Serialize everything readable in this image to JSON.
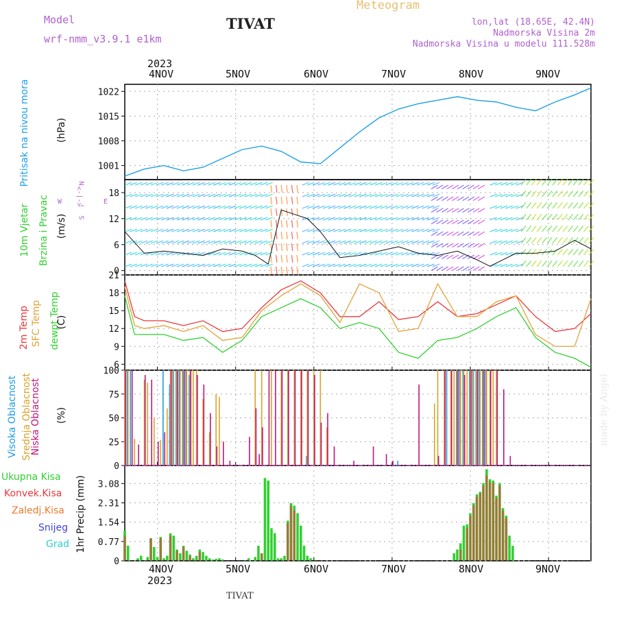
{
  "header": {
    "model_label": "Model",
    "model_name": "wrf-nmm_v3.9.1 e1km",
    "title": "TIVAT",
    "meteogram": "Meteogram",
    "lonlat": "lon,lat (18.65E, 42.4N)",
    "altitude": "Nadmorska Visina 2m",
    "model_altitude": "Nadmorska Visina u modelu 111.528m",
    "footer": "TIVAT",
    "watermark": "made by Angel"
  },
  "time_axis": {
    "year_top": "2023",
    "year_bottom": "2023",
    "days": [
      "4NOV",
      "5NOV",
      "6NOV",
      "7NOV",
      "8NOV",
      "9NOV"
    ]
  },
  "wind_legend": {
    "n": "N",
    "s": "S",
    "e": "E",
    "w": "W",
    "up": "^",
    "arrow": "<-|->"
  },
  "colors": {
    "pressure": "#1ea0e6",
    "temp2m": "#e8383c",
    "sfc": "#e2a33a",
    "dewpt": "#2fd02f",
    "high_cloud": "#1e9be0",
    "mid_cloud": "#d8a22a",
    "low_cloud": "#c0157a",
    "ukupna": "#2fd02f",
    "konvek": "#e8383c",
    "zaledj": "#f07a2a",
    "snijeg": "#4040e0",
    "grad": "#2ccfcf"
  },
  "panels": {
    "pressure": {
      "label1": "Pritisak na nivou mora",
      "unit": "(hPa)",
      "ticks": [
        "1001",
        "1008",
        "1015",
        "1022"
      ]
    },
    "wind": {
      "label1": "10m Vjetar",
      "label2": "Brzina i Pravac",
      "unit": "(m/s)",
      "ticks": [
        "0",
        "6",
        "12",
        "18"
      ]
    },
    "temp": {
      "label1": "2m Temp",
      "label2": "SFC Temp",
      "label3": "dewpt Temp",
      "unit": "(C)",
      "ticks": [
        "6",
        "9",
        "12",
        "15",
        "18",
        "21"
      ]
    },
    "cloud": {
      "label1": "Visoka Oblacnost",
      "label2": "Srednja Oblacnost",
      "label3": "Niska Oblacnost",
      "unit": "(%)",
      "ticks": [
        "0",
        "25",
        "50",
        "75",
        "100"
      ]
    },
    "precip": {
      "unit": "1hr Precip (mm)",
      "ticks": [
        "0",
        "0.77",
        "1.54",
        "2.31",
        "3.08"
      ],
      "legend": [
        "Ukupna Kisa",
        "Konvek.Kisa",
        "Zaledj.Kisa",
        "Snijeg",
        "Grad"
      ]
    }
  },
  "chart_data": [
    {
      "type": "line",
      "title": "",
      "ylabel": "Pritisak na nivou mora (hPa)",
      "ylim": [
        997,
        1024
      ],
      "x_unit": "hours since 3 Nov 2023 14:00",
      "x": [
        0,
        6,
        12,
        18,
        24,
        30,
        36,
        42,
        48,
        54,
        60,
        66,
        72,
        78,
        84,
        90,
        96,
        102,
        108,
        114,
        120,
        126,
        132,
        138,
        143
      ],
      "series": [
        {
          "name": "Pritisak na nivou mora",
          "values": [
            998,
            1000,
            1001,
            999.5,
            1000.5,
            1003,
            1005.5,
            1006.5,
            1005,
            1002,
            1001.5,
            1006,
            1010.5,
            1014.5,
            1017,
            1018.5,
            1019.5,
            1020.5,
            1019.5,
            1019,
            1017.5,
            1016.5,
            1019,
            1021,
            1023
          ]
        }
      ]
    },
    {
      "type": "line",
      "title": "",
      "ylabel": "10m Vjetar Brzina i Pravac (m/s)",
      "ylim": [
        -1,
        21
      ],
      "x_unit": "hours since 3 Nov 2023 14:00",
      "x": [
        0,
        6,
        12,
        18,
        24,
        30,
        36,
        40,
        44,
        48,
        52,
        56,
        60,
        66,
        72,
        78,
        84,
        90,
        96,
        102,
        108,
        112,
        116,
        120,
        126,
        132,
        138,
        143
      ],
      "series": [
        {
          "name": "10m Vjetar",
          "values": [
            9,
            4,
            4.5,
            4,
            3.5,
            5,
            4.5,
            3.5,
            1.5,
            14,
            13,
            12,
            9,
            3,
            3.5,
            4.5,
            5.5,
            4,
            3.5,
            4.5,
            2.5,
            1,
            2.5,
            4,
            4,
            4.5,
            7,
            5
          ]
        }
      ]
    },
    {
      "type": "line",
      "title": "",
      "ylabel": "(C)",
      "ylim": [
        5,
        21
      ],
      "x_unit": "hours since 3 Nov 2023 14:00",
      "x": [
        0,
        3,
        6,
        12,
        18,
        24,
        30,
        36,
        42,
        48,
        54,
        60,
        66,
        72,
        78,
        84,
        90,
        96,
        102,
        108,
        114,
        120,
        126,
        132,
        138,
        143
      ],
      "series": [
        {
          "name": "2m Temp",
          "values": [
            20,
            14,
            13.3,
            13.3,
            12.5,
            13.3,
            11.5,
            12,
            15.5,
            18.5,
            20,
            18,
            14,
            14,
            16.5,
            13.5,
            14,
            16.5,
            14,
            14.5,
            16,
            17.5,
            14,
            11.5,
            12,
            14.5
          ]
        },
        {
          "name": "SFC Temp",
          "values": [
            19,
            12.5,
            12,
            12.5,
            11.5,
            12.5,
            10,
            10.5,
            15,
            17.5,
            19.5,
            17.5,
            13,
            19.5,
            18,
            11.5,
            12,
            19.5,
            14,
            14,
            16.5,
            17.5,
            11,
            9,
            9,
            17
          ]
        },
        {
          "name": "dewpt Temp",
          "values": [
            17.5,
            11,
            11,
            11,
            10,
            10.5,
            8,
            10,
            14,
            15.5,
            17,
            15.5,
            12,
            13,
            12,
            8,
            7,
            10,
            10.5,
            12,
            14,
            15.5,
            10.5,
            8,
            7,
            5.5
          ]
        }
      ]
    },
    {
      "type": "bar",
      "title": "",
      "ylabel": "(%)",
      "ylim": [
        0,
        100
      ],
      "x_unit": "hours since 3 Nov 2023 14:00",
      "series": [
        {
          "name": "Visoka Oblacnost",
          "x": [
            1,
            2,
            12,
            14,
            15,
            16,
            17,
            18,
            19,
            20,
            56,
            84,
            99,
            102,
            103,
            104,
            106,
            107,
            108,
            109,
            110,
            111
          ],
          "values": [
            100,
            100,
            100,
            85,
            100,
            100,
            100,
            100,
            100,
            95,
            10,
            5,
            100,
            100,
            100,
            100,
            100,
            100,
            100,
            100,
            100,
            100
          ]
        },
        {
          "name": "Srednja Oblacnost",
          "x": [
            0,
            1,
            3,
            6,
            7,
            9,
            11,
            13,
            14,
            15,
            16,
            17,
            18,
            19,
            20,
            21,
            22,
            24,
            26,
            28,
            29,
            40,
            42,
            45,
            48,
            50,
            52,
            54,
            56,
            58,
            60,
            62,
            95,
            96,
            98,
            100,
            101,
            102,
            103,
            104,
            105,
            106,
            107,
            108,
            109,
            110,
            111,
            112,
            113,
            114
          ],
          "values": [
            100,
            100,
            28,
            90,
            87,
            50,
            27,
            60,
            100,
            100,
            100,
            100,
            100,
            100,
            100,
            100,
            100,
            70,
            35,
            75,
            72,
            100,
            100,
            100,
            100,
            100,
            100,
            100,
            100,
            100,
            100,
            40,
            65,
            100,
            100,
            100,
            100,
            100,
            100,
            100,
            100,
            100,
            100,
            100,
            100,
            100,
            100,
            100,
            100,
            100
          ]
        },
        {
          "name": "Niska Oblacnost",
          "x": [
            0,
            2,
            4,
            6,
            8,
            10,
            12,
            14,
            16,
            18,
            20,
            22,
            24,
            26,
            28,
            30,
            32,
            38,
            40,
            41,
            42,
            44,
            46,
            48,
            50,
            52,
            54,
            56,
            58,
            60,
            62,
            64,
            70,
            76,
            80,
            82,
            90,
            96,
            98,
            100,
            102,
            104,
            106,
            108,
            110,
            112,
            114,
            116,
            118
          ],
          "values": [
            100,
            100,
            22,
            95,
            90,
            25,
            35,
            100,
            100,
            100,
            100,
            95,
            85,
            55,
            20,
            25,
            5,
            30,
            60,
            12,
            40,
            100,
            100,
            100,
            100,
            100,
            100,
            100,
            95,
            45,
            55,
            20,
            5,
            20,
            12,
            5,
            85,
            10,
            100,
            100,
            100,
            95,
            100,
            100,
            100,
            100,
            100,
            80,
            10
          ]
        }
      ]
    },
    {
      "type": "bar",
      "title": "",
      "ylabel": "1hr Precip (mm)",
      "ylim": [
        0,
        3.8
      ],
      "x_unit": "hours since 3 Nov 2023 14:00",
      "series": [
        {
          "name": "Ukupna Kisa",
          "x": [
            0,
            1,
            4,
            5,
            7,
            8,
            9,
            10,
            11,
            12,
            13,
            14,
            15,
            16,
            17,
            18,
            19,
            20,
            21,
            22,
            23,
            24,
            25,
            26,
            27,
            28,
            29,
            30,
            38,
            40,
            41,
            42,
            43,
            44,
            45,
            46,
            47,
            48,
            49,
            50,
            51,
            52,
            53,
            54,
            55,
            56,
            57,
            58,
            101,
            102,
            103,
            104,
            105,
            106,
            107,
            108,
            109,
            110,
            111,
            112,
            113,
            114,
            115,
            116,
            117,
            118,
            119
          ],
          "values": [
            1.2,
            0.6,
            0.1,
            0.2,
            0.15,
            0.9,
            0.55,
            0.15,
            0.95,
            0.1,
            0.2,
            1.1,
            1.0,
            0.45,
            0.3,
            0.6,
            0.4,
            0.25,
            0.1,
            0.2,
            0.45,
            0.35,
            0.2,
            0.1,
            0.05,
            0.08,
            0.1,
            0.05,
            0.1,
            0.15,
            0.6,
            0.3,
            3.3,
            3.2,
            1.3,
            1.1,
            0.1,
            0.1,
            0.2,
            1.6,
            2.3,
            2.2,
            1.9,
            1.4,
            0.6,
            0.2,
            0.1,
            0.05,
            0.3,
            0.45,
            0.7,
            1.4,
            1.45,
            1.9,
            2.3,
            2.65,
            2.75,
            3.1,
            3.65,
            3.25,
            3.2,
            2.6,
            3.1,
            2.1,
            1.8,
            1.0,
            0.6
          ]
        },
        {
          "name": "Konvek.Kisa",
          "x": [
            0,
            8,
            11,
            14,
            16,
            18,
            20,
            23,
            42,
            50,
            51,
            52,
            103,
            105,
            106,
            107,
            108,
            109,
            110,
            111,
            112,
            113,
            114,
            115,
            116,
            117
          ],
          "values": [
            1.0,
            0.9,
            0.9,
            1.0,
            0.4,
            0.55,
            0.2,
            0.35,
            0.3,
            1.5,
            2.2,
            2.0,
            0.45,
            1.3,
            1.8,
            2.2,
            2.55,
            2.7,
            3.0,
            3.4,
            3.15,
            3.1,
            2.5,
            3.0,
            2.0,
            1.7
          ]
        }
      ]
    }
  ]
}
